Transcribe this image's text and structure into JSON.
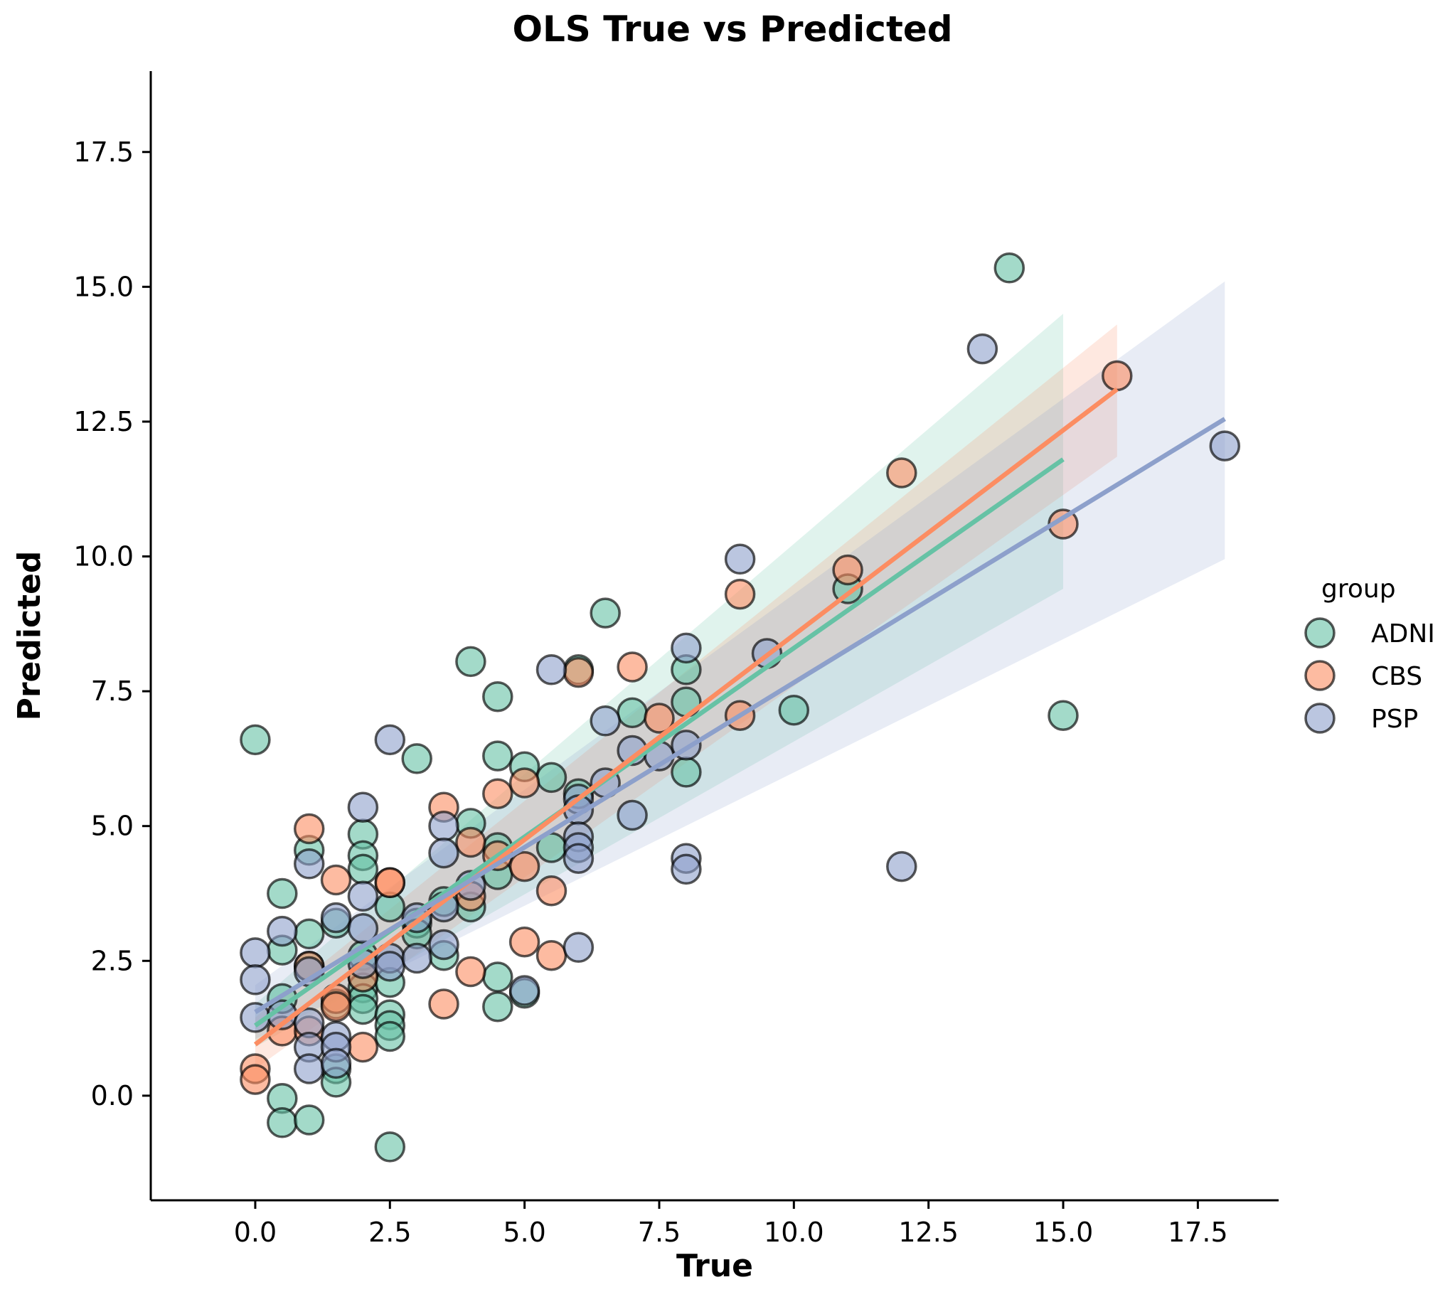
{
  "chart_data": {
    "type": "scatter",
    "title": "OLS True vs Predicted",
    "xlabel": "True",
    "ylabel": "Predicted",
    "xlim": [
      -1.94,
      19.0
    ],
    "ylim": [
      -1.94,
      19.0
    ],
    "xticks": [
      "0.0",
      "2.5",
      "5.0",
      "7.5",
      "10.0",
      "12.5",
      "15.0",
      "17.5"
    ],
    "yticks": [
      "0.0",
      "2.5",
      "5.0",
      "7.5",
      "10.0",
      "12.5",
      "15.0",
      "17.5"
    ],
    "grid": false,
    "legend": {
      "title": "group",
      "placement": "right"
    },
    "series": [
      {
        "name": "ADNI",
        "color": "#66c2a5",
        "fit": {
          "x": [
            0,
            15
          ],
          "y": [
            1.3,
            11.8
          ]
        },
        "band": {
          "x": [
            0,
            15
          ],
          "lower": [
            0.9,
            9.4
          ],
          "upper": [
            1.7,
            14.5
          ]
        },
        "points": [
          [
            0,
            6.6
          ],
          [
            0.5,
            3.75
          ],
          [
            0.5,
            2.7
          ],
          [
            0.5,
            1.8
          ],
          [
            0.5,
            -0.05
          ],
          [
            0.5,
            -0.5
          ],
          [
            1,
            4.55
          ],
          [
            1,
            3.0
          ],
          [
            1,
            2.4
          ],
          [
            1,
            -0.45
          ],
          [
            1.5,
            3.2
          ],
          [
            1.5,
            1.7
          ],
          [
            1.5,
            0.5
          ],
          [
            1.5,
            0.25
          ],
          [
            2,
            4.85
          ],
          [
            2,
            4.45
          ],
          [
            2,
            4.2
          ],
          [
            2,
            2.6
          ],
          [
            2,
            2.2
          ],
          [
            2,
            2.0
          ],
          [
            2,
            1.8
          ],
          [
            2,
            1.6
          ],
          [
            2.5,
            3.5
          ],
          [
            2.5,
            2.1
          ],
          [
            2.5,
            1.5
          ],
          [
            2.5,
            1.3
          ],
          [
            2.5,
            1.1
          ],
          [
            2.5,
            -0.95
          ],
          [
            3,
            6.25
          ],
          [
            3,
            3.2
          ],
          [
            3,
            3.0
          ],
          [
            3.5,
            3.6
          ],
          [
            3.5,
            2.6
          ],
          [
            4,
            8.05
          ],
          [
            4,
            5.05
          ],
          [
            4,
            3.5
          ],
          [
            4.5,
            7.4
          ],
          [
            4.5,
            6.3
          ],
          [
            4.5,
            4.6
          ],
          [
            4.5,
            4.1
          ],
          [
            4.5,
            2.2
          ],
          [
            4.5,
            1.65
          ],
          [
            5,
            6.1
          ],
          [
            5,
            1.9
          ],
          [
            5.5,
            5.9
          ],
          [
            5.5,
            4.6
          ],
          [
            6,
            7.9
          ],
          [
            6,
            5.6
          ],
          [
            6.5,
            8.95
          ],
          [
            7,
            7.1
          ],
          [
            8,
            7.9
          ],
          [
            8,
            7.3
          ],
          [
            8,
            6.0
          ],
          [
            10,
            7.15
          ],
          [
            11,
            9.4
          ],
          [
            14,
            15.35
          ],
          [
            15,
            7.05
          ]
        ]
      },
      {
        "name": "CBS",
        "color": "#fc8d62",
        "fit": {
          "x": [
            0,
            16
          ],
          "y": [
            0.95,
            13.1
          ]
        },
        "band": {
          "x": [
            0,
            16
          ],
          "lower": [
            0.5,
            11.85
          ],
          "upper": [
            1.45,
            14.3
          ]
        },
        "points": [
          [
            0,
            0.5
          ],
          [
            0,
            0.3
          ],
          [
            0.5,
            1.2
          ],
          [
            1,
            4.95
          ],
          [
            1,
            2.4
          ],
          [
            1,
            1.2
          ],
          [
            1.5,
            4.0
          ],
          [
            1.5,
            1.8
          ],
          [
            1.5,
            1.65
          ],
          [
            2,
            2.2
          ],
          [
            2,
            0.9
          ],
          [
            2.5,
            3.95
          ],
          [
            2.5,
            3.95
          ],
          [
            3.5,
            5.35
          ],
          [
            3.5,
            1.7
          ],
          [
            4,
            4.7
          ],
          [
            4,
            3.7
          ],
          [
            4,
            2.3
          ],
          [
            4.5,
            5.6
          ],
          [
            4.5,
            4.45
          ],
          [
            5,
            5.8
          ],
          [
            5,
            4.25
          ],
          [
            5,
            2.85
          ],
          [
            5.5,
            3.8
          ],
          [
            5.5,
            2.6
          ],
          [
            6,
            7.85
          ],
          [
            7,
            7.95
          ],
          [
            7.5,
            7.0
          ],
          [
            9,
            9.3
          ],
          [
            9,
            7.05
          ],
          [
            11,
            9.75
          ],
          [
            12,
            11.55
          ],
          [
            15,
            10.6
          ],
          [
            16,
            13.35
          ]
        ]
      },
      {
        "name": "PSP",
        "color": "#8da0cb",
        "fit": {
          "x": [
            0,
            18
          ],
          "y": [
            1.55,
            12.55
          ]
        },
        "band": {
          "x": [
            0,
            18
          ],
          "lower": [
            1.05,
            9.95
          ],
          "upper": [
            2.05,
            15.1
          ]
        },
        "points": [
          [
            0,
            2.65
          ],
          [
            0,
            2.15
          ],
          [
            0,
            1.45
          ],
          [
            0.5,
            3.05
          ],
          [
            0.5,
            1.5
          ],
          [
            1,
            4.3
          ],
          [
            1,
            2.3
          ],
          [
            1,
            1.35
          ],
          [
            1,
            0.9
          ],
          [
            1,
            0.5
          ],
          [
            1.5,
            3.3
          ],
          [
            1.5,
            1.1
          ],
          [
            1.5,
            0.9
          ],
          [
            1.5,
            0.6
          ],
          [
            2,
            5.35
          ],
          [
            2,
            3.7
          ],
          [
            2,
            3.1
          ],
          [
            2,
            2.45
          ],
          [
            2.5,
            6.6
          ],
          [
            2.5,
            2.55
          ],
          [
            2.5,
            2.4
          ],
          [
            3,
            2.55
          ],
          [
            3,
            3.3
          ],
          [
            3.5,
            5.0
          ],
          [
            3.5,
            4.5
          ],
          [
            3.5,
            3.5
          ],
          [
            3.5,
            2.8
          ],
          [
            4,
            3.9
          ],
          [
            5,
            1.95
          ],
          [
            5.5,
            7.9
          ],
          [
            6,
            5.5
          ],
          [
            6,
            5.3
          ],
          [
            6,
            4.8
          ],
          [
            6,
            4.6
          ],
          [
            6,
            4.4
          ],
          [
            6,
            2.75
          ],
          [
            6.5,
            6.95
          ],
          [
            6.5,
            5.8
          ],
          [
            7,
            6.4
          ],
          [
            7,
            5.2
          ],
          [
            7.5,
            6.3
          ],
          [
            8,
            8.3
          ],
          [
            8,
            6.5
          ],
          [
            8,
            4.4
          ],
          [
            8,
            4.2
          ],
          [
            9,
            9.95
          ],
          [
            9.5,
            8.2
          ],
          [
            12,
            4.25
          ],
          [
            13.5,
            13.85
          ],
          [
            18,
            12.05
          ]
        ]
      }
    ]
  }
}
